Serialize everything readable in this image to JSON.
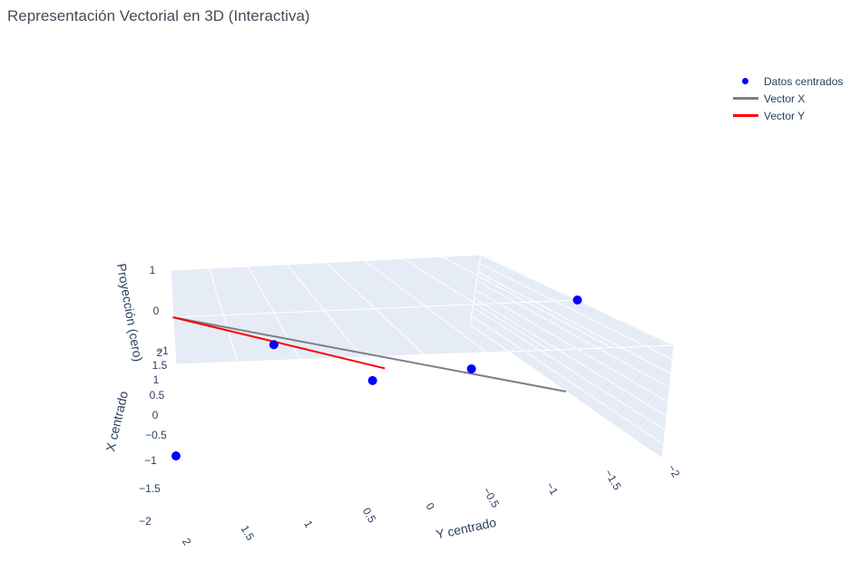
{
  "title": "Representación Vectorial en 3D (Interactiva)",
  "legend": [
    {
      "label": "Datos centrados",
      "kind": "marker",
      "color": "#0000ff"
    },
    {
      "label": "Vector X",
      "kind": "line",
      "color": "#808080"
    },
    {
      "label": "Vector Y",
      "kind": "line",
      "color": "#ff0000"
    }
  ],
  "chart_data": {
    "type": "scatter3d",
    "title": "Representación Vectorial en 3D (Interactiva)",
    "scene_background": "#e5ecf6",
    "grid_color": "#ffffff",
    "axes": {
      "x": {
        "title": "X centrado",
        "range": [
          -2,
          2
        ],
        "ticks": [
          -2,
          -1.5,
          -1,
          -0.5,
          0,
          0.5,
          1,
          1.5,
          2
        ],
        "tick_labels": [
          "−2",
          "−1.5",
          "−1",
          "−0.5",
          "0",
          "0.5",
          "1",
          "1.5",
          "2"
        ]
      },
      "y": {
        "title": "Y centrado",
        "range": [
          -2,
          2
        ],
        "ticks": [
          2,
          1.5,
          1,
          0.5,
          0,
          -0.5,
          -1,
          -1.5,
          -2
        ],
        "tick_labels": [
          "2",
          "1.5",
          "1",
          "0.5",
          "0",
          "−0.5",
          "−1",
          "−1.5",
          "−2"
        ]
      },
      "z": {
        "title": "Proyección (cero)",
        "range": [
          -1,
          1
        ],
        "ticks": [
          -1,
          0,
          1
        ],
        "tick_labels": [
          "−1",
          "0",
          "1"
        ]
      }
    },
    "series": [
      {
        "name": "Datos centrados",
        "mode": "markers",
        "color": "#0000ff",
        "points": [
          {
            "x": -2,
            "y": 2,
            "z": 0
          },
          {
            "x": 1,
            "y": 1,
            "z": 0
          },
          {
            "x": -1,
            "y": -0.5,
            "z": 0
          },
          {
            "x": 2,
            "y": -2,
            "z": 0
          },
          {
            "x": 0,
            "y": -0.5,
            "z": 0
          }
        ]
      },
      {
        "name": "Vector X",
        "mode": "lines",
        "color": "#808080",
        "points": [
          {
            "x": -2,
            "y": -2,
            "z": 0
          },
          {
            "x": 2,
            "y": 2,
            "z": 0
          }
        ]
      },
      {
        "name": "Vector Y",
        "mode": "lines",
        "color": "#ff0000",
        "points": [
          {
            "x": -0.12,
            "y": -0.12,
            "z": 0
          },
          {
            "x": 2,
            "y": 2,
            "z": 0
          }
        ]
      }
    ]
  }
}
